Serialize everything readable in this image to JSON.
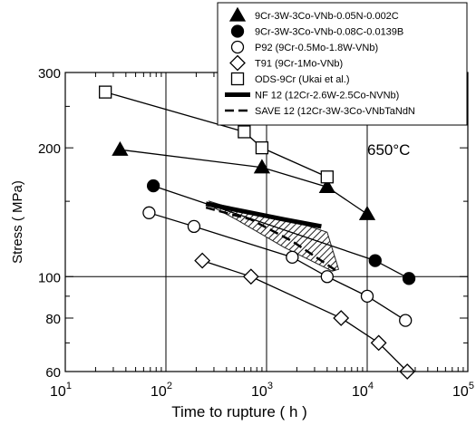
{
  "chart_data": {
    "type": "scatter",
    "title": "",
    "annotation": "650°C",
    "xlabel": "Time to rupture ( h )",
    "ylabel": "Stress ( MPa)",
    "xscale": "log",
    "yscale": "log",
    "xlim": [
      10,
      100000
    ],
    "ylim": [
      60,
      300
    ],
    "xticks": [
      {
        "value": 10,
        "base": "10",
        "exp": "1"
      },
      {
        "value": 100,
        "base": "10",
        "exp": "2"
      },
      {
        "value": 1000,
        "base": "10",
        "exp": "3"
      },
      {
        "value": 10000,
        "base": "10",
        "exp": "4"
      },
      {
        "value": 100000,
        "base": "10",
        "exp": "5"
      }
    ],
    "yticks": [
      {
        "value": 60,
        "label": "60"
      },
      {
        "value": 80,
        "label": "80"
      },
      {
        "value": 100,
        "label": "100"
      },
      {
        "value": 200,
        "label": "200"
      },
      {
        "value": 300,
        "label": "300"
      }
    ],
    "grid": "major lines at 10^2, 10^3, 10^4 h and 100 MPa",
    "legend_position": "top-right",
    "series": [
      {
        "name": "9Cr-3W-3Co-VNb-0.05N-0.002C",
        "marker": "filled-triangle",
        "line": "solid",
        "x": [
          35,
          900,
          4000,
          10000
        ],
        "y": [
          198,
          180,
          162,
          140
        ]
      },
      {
        "name": "9Cr-3W-3Co-VNb-0.08C-0.0139B",
        "marker": "filled-circle",
        "line": "solid",
        "x": [
          75,
          12000,
          26000
        ],
        "y": [
          163,
          109,
          99
        ]
      },
      {
        "name": "P92 (9Cr-0.5Mo-1.8W-VNb)",
        "marker": "open-circle",
        "line": "solid",
        "x": [
          68,
          190,
          1800,
          4000,
          10000,
          24000
        ],
        "y": [
          141,
          131,
          111,
          100,
          90,
          79
        ]
      },
      {
        "name": "T91 (9Cr-1Mo-VNb)",
        "marker": "open-diamond",
        "line": "solid",
        "x": [
          230,
          700,
          5500,
          13000,
          25000
        ],
        "y": [
          109,
          100,
          80,
          70,
          60
        ]
      },
      {
        "name": "ODS-9Cr (Ukai et al.)",
        "marker": "open-square",
        "line": "solid",
        "x": [
          25,
          600,
          900,
          4000
        ],
        "y": [
          270,
          218,
          200,
          171
        ]
      },
      {
        "name": "NF 12 (12Cr-2.6W-2.5Co-NVNb)",
        "marker": "none",
        "line": "thick",
        "x": [
          250,
          600,
          1500,
          3500
        ],
        "y": [
          148,
          142,
          136,
          131
        ]
      },
      {
        "name": "SAVE 12 (12Cr-3W-3Co-VNbTaNdN",
        "marker": "none",
        "line": "dashed",
        "x": [
          250,
          700,
          1800,
          5000
        ],
        "y": [
          145,
          136,
          121,
          103
        ]
      }
    ],
    "hatched_band": {
      "x": [
        270,
        700,
        2000,
        4000,
        5200,
        4500,
        1500,
        500,
        300
      ],
      "y": [
        150,
        140,
        134,
        127,
        104,
        103,
        117,
        136,
        145
      ]
    }
  }
}
